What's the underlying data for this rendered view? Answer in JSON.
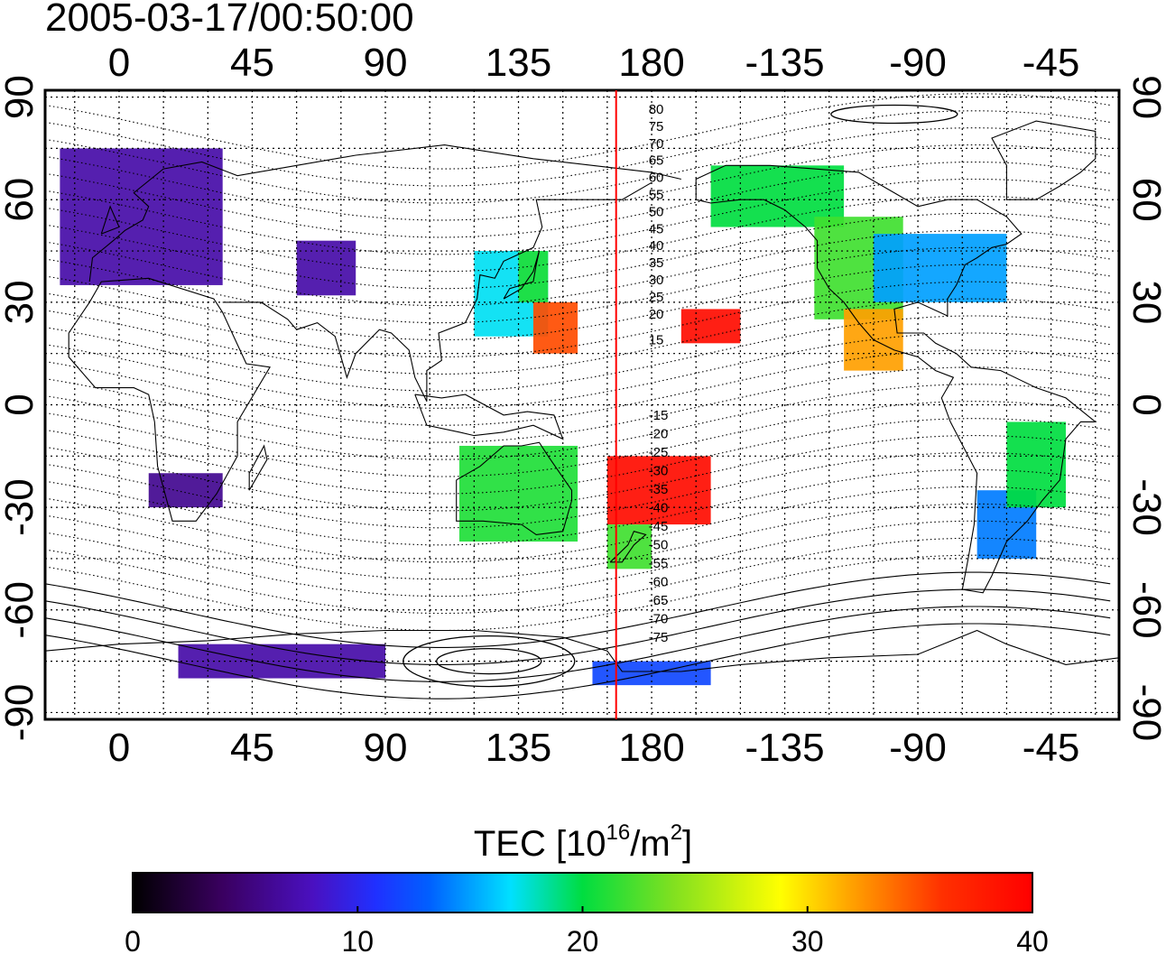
{
  "title": "2005-03-17/00:50:00",
  "map": {
    "lon_tick_labels": [
      "0",
      "45",
      "90",
      "135",
      "180",
      "-135",
      "-90",
      "-45"
    ],
    "lon_tick_values": [
      0,
      45,
      90,
      135,
      180,
      225,
      270,
      315
    ],
    "lat_tick_labels": [
      "90",
      "60",
      "30",
      "0",
      "-30",
      "-60",
      "-90"
    ],
    "lat_tick_values": [
      90,
      60,
      30,
      0,
      -30,
      -60,
      -90
    ],
    "lon_range": [
      -25,
      338
    ],
    "lat_range": [
      -92,
      92
    ],
    "meridian_line_lon": 168,
    "meridian_line_color": "#ff0000",
    "contour_labels_north": [
      "80",
      "75",
      "70",
      "65",
      "60",
      "55",
      "50",
      "45",
      "40",
      "35",
      "30",
      "25",
      "20",
      "15"
    ],
    "contour_labels_south": [
      "-15",
      "-20",
      "-25",
      "-30",
      "-35",
      "-40",
      "-45",
      "-50",
      "-55",
      "-60",
      "-65",
      "-70",
      "-75"
    ]
  },
  "colorbar": {
    "label": "TEC  [10",
    "label_sup": "16",
    "label_mid": "/m",
    "label_sup2": "2",
    "label_end": "]",
    "min": 0,
    "max": 40,
    "tick_labels": [
      "0",
      "10",
      "20",
      "30",
      "40"
    ],
    "tick_values": [
      0,
      10,
      20,
      30,
      40
    ]
  },
  "chart_data": {
    "type": "heatmap",
    "title": "2005-03-17/00:50:00",
    "xlabel": "",
    "ylabel": "",
    "xlim": [
      -25,
      338
    ],
    "ylim": [
      -92,
      92
    ],
    "grid": true,
    "regions": [
      {
        "lon": [
          -20,
          35
        ],
        "lat": [
          35,
          75
        ],
        "tec": 7
      },
      {
        "lon": [
          60,
          80
        ],
        "lat": [
          32,
          48
        ],
        "tec": 7
      },
      {
        "lon": [
          120,
          145
        ],
        "lat": [
          20,
          45
        ],
        "tec": 17
      },
      {
        "lon": [
          135,
          145
        ],
        "lat": [
          30,
          45
        ],
        "tec": 21
      },
      {
        "lon": [
          140,
          155
        ],
        "lat": [
          15,
          30
        ],
        "tec": 35
      },
      {
        "lon": [
          190,
          210
        ],
        "lat": [
          18,
          28
        ],
        "tec": 39
      },
      {
        "lon": [
          200,
          245
        ],
        "lat": [
          52,
          70
        ],
        "tec": 20
      },
      {
        "lon": [
          235,
          265
        ],
        "lat": [
          25,
          55
        ],
        "tec": 22
      },
      {
        "lon": [
          255,
          300
        ],
        "lat": [
          30,
          50
        ],
        "tec": 15
      },
      {
        "lon": [
          245,
          265
        ],
        "lat": [
          10,
          28
        ],
        "tec": 32
      },
      {
        "lon": [
          165,
          200
        ],
        "lat": [
          -35,
          -15
        ],
        "tec": 39
      },
      {
        "lon": [
          165,
          180
        ],
        "lat": [
          -48,
          -35
        ],
        "tec": 22
      },
      {
        "lon": [
          115,
          155
        ],
        "lat": [
          -40,
          -12
        ],
        "tec": 21
      },
      {
        "lon": [
          290,
          310
        ],
        "lat": [
          -45,
          -25
        ],
        "tec": 14
      },
      {
        "lon": [
          300,
          320
        ],
        "lat": [
          -30,
          -5
        ],
        "tec": 20
      },
      {
        "lon": [
          10,
          35
        ],
        "lat": [
          -30,
          -20
        ],
        "tec": 6
      },
      {
        "lon": [
          20,
          90
        ],
        "lat": [
          -80,
          -70
        ],
        "tec": 7
      },
      {
        "lon": [
          160,
          200
        ],
        "lat": [
          -82,
          -75
        ],
        "tec": 12
      }
    ]
  }
}
